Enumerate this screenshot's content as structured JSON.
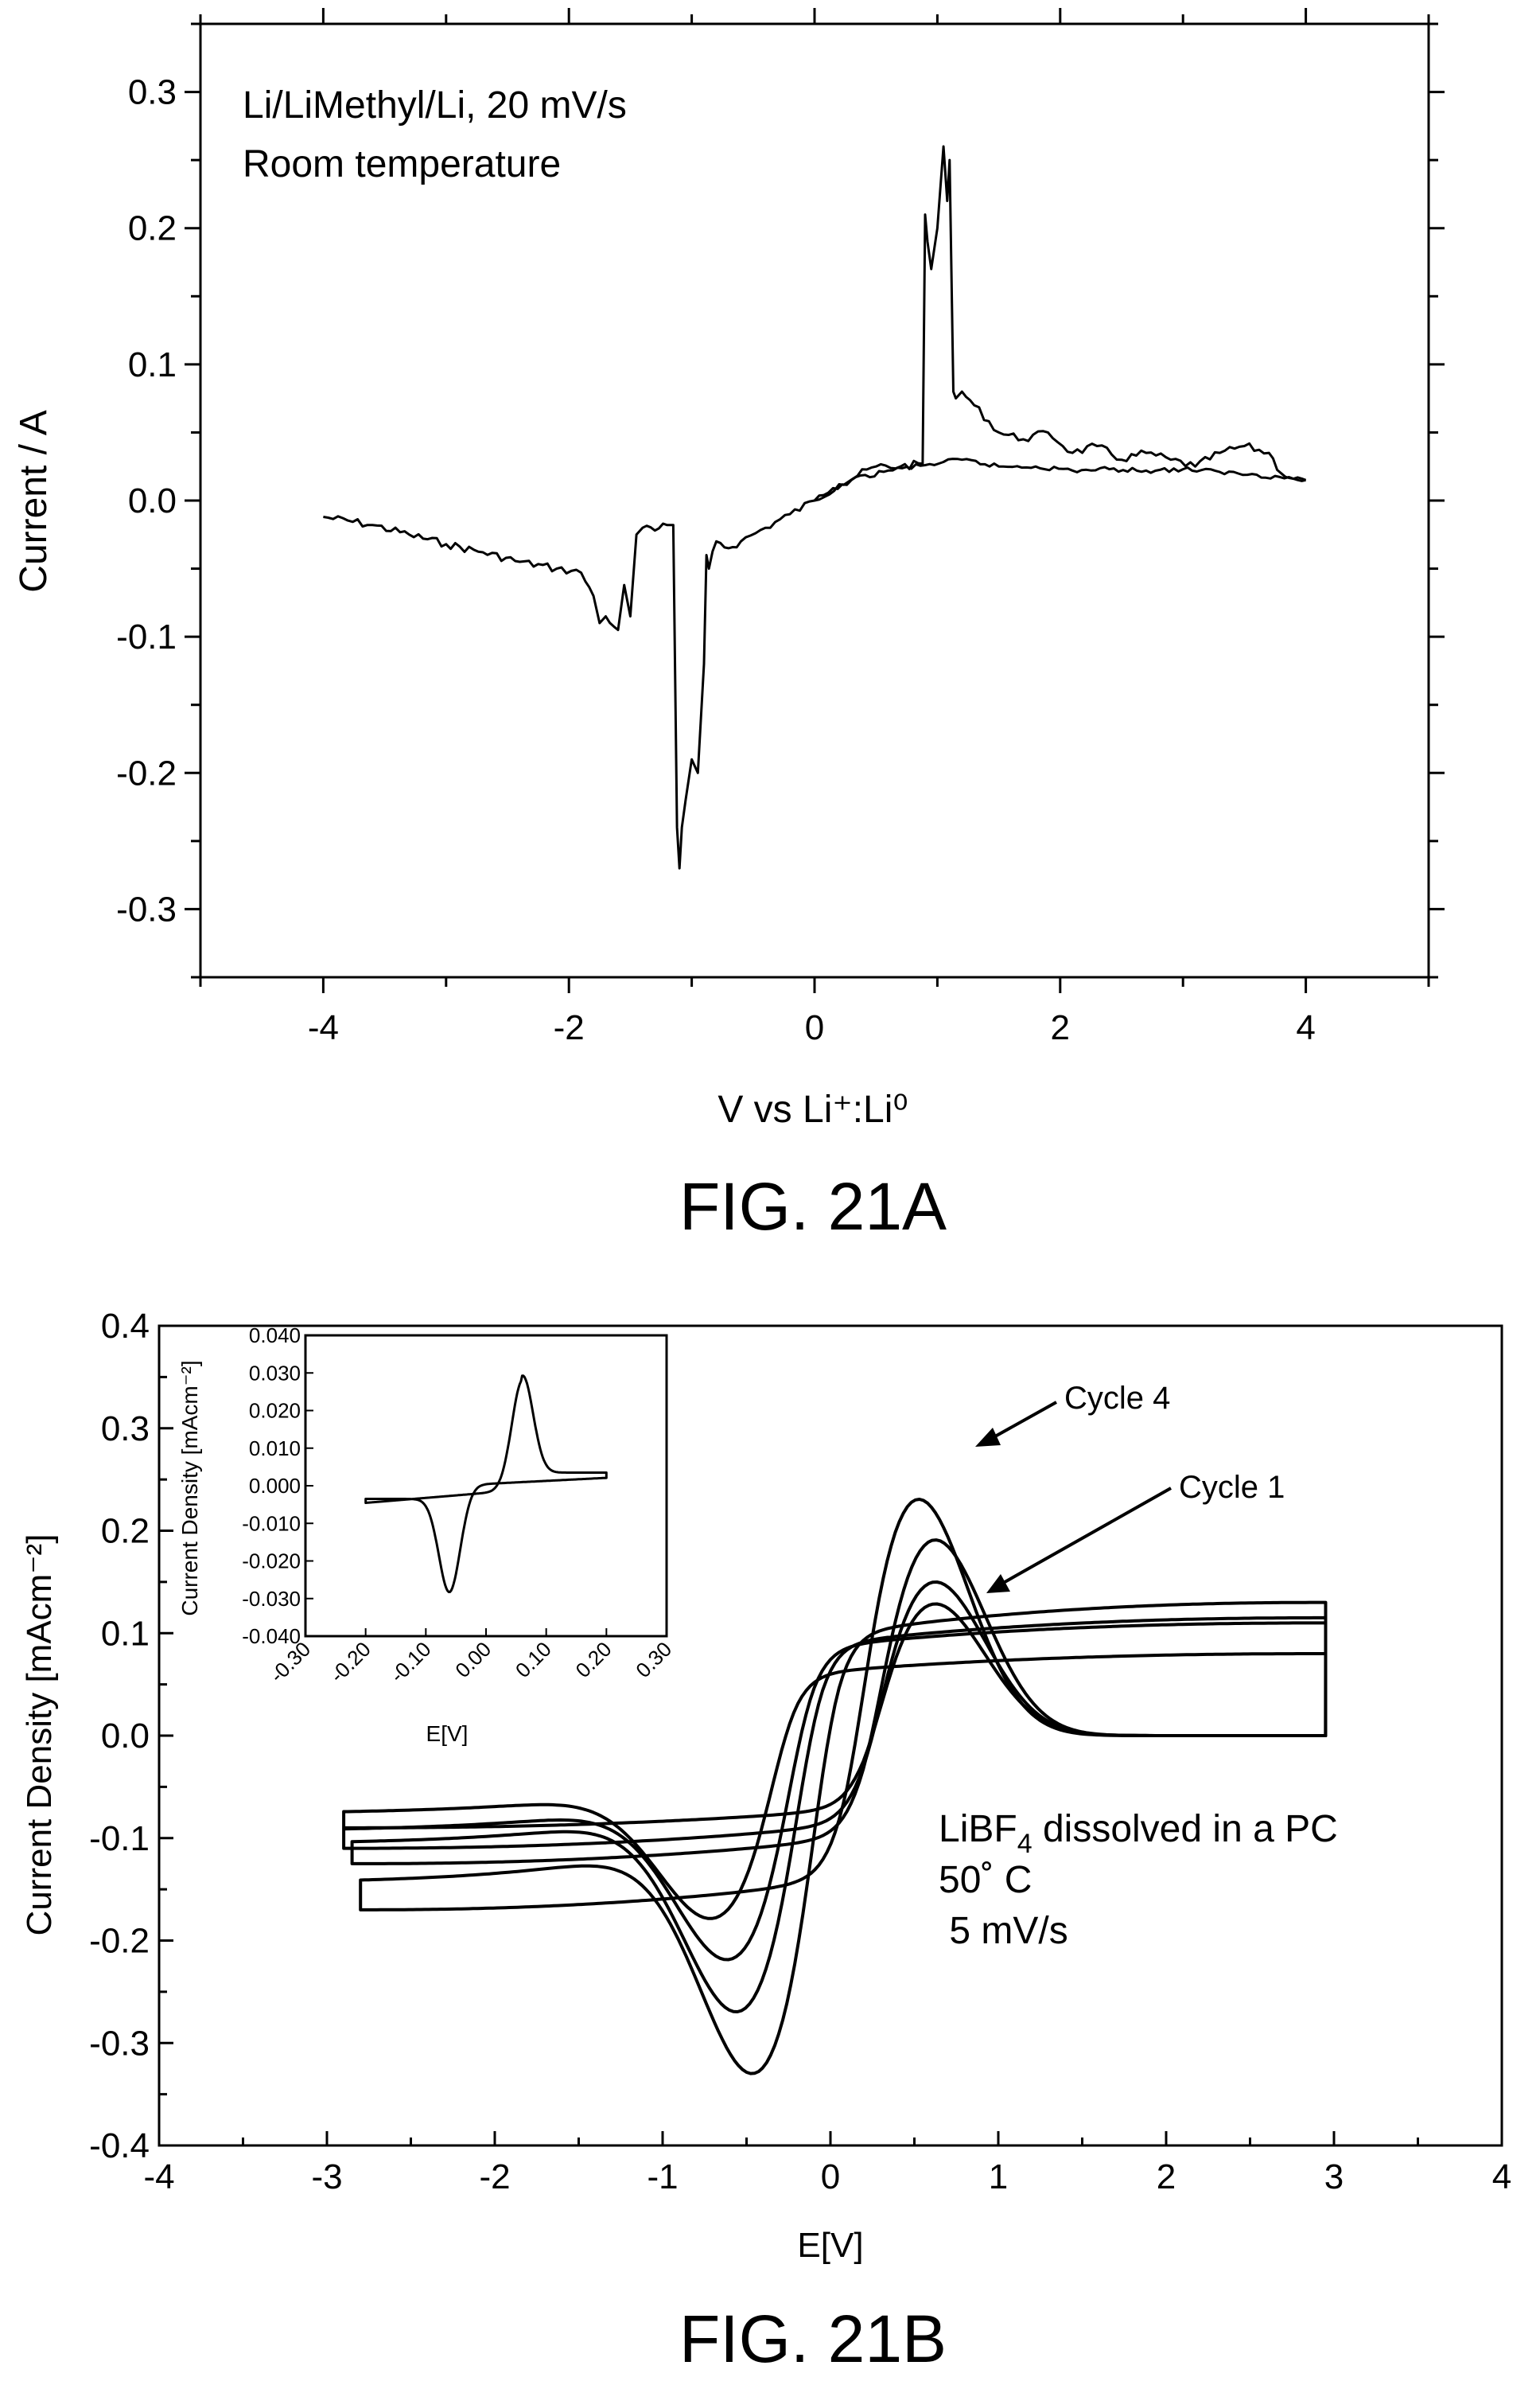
{
  "figures": [
    {
      "caption": "FIG. 21A",
      "annotations": [
        "Li/LiMethyl/Li, 20 mV/s",
        "Room temperature"
      ]
    },
    {
      "caption": "FIG. 21B",
      "annotations": [
        "LiBF",
        "4",
        " dissolved in a PC",
        "50˚ C",
        " 5 mV/s"
      ],
      "cycle_labels": [
        "Cycle 4",
        "Cycle 1"
      ]
    }
  ],
  "chart_data": [
    {
      "type": "line",
      "title": "",
      "xlabel": "V vs Li⁺:Li⁰",
      "ylabel": "Current / A",
      "xlim": [
        -5,
        5
      ],
      "ylim": [
        -0.35,
        0.35
      ],
      "xticks": [
        "-4",
        "-2",
        "0",
        "2",
        "4"
      ],
      "yticks": [
        "0.3",
        "0.2",
        "0.1",
        "0.0",
        "-0.1",
        "-0.2",
        "-0.3"
      ],
      "grid": false,
      "series": [
        {
          "x": [
            -4.0,
            -3.6,
            -3.3,
            -3.0,
            -2.7,
            -2.4,
            -2.1,
            -1.9,
            -1.8,
            -1.75,
            -1.7,
            -1.6,
            -1.55,
            -1.5,
            -1.45,
            -1.4,
            -1.3,
            -1.2,
            -1.15,
            -1.12,
            -1.1,
            -1.08,
            -1.05,
            -1.0,
            -0.95,
            -0.9,
            -0.88,
            -0.86,
            -0.8,
            -0.7,
            -0.6,
            -0.4,
            -0.2,
            0.0,
            0.2,
            0.5,
            0.7,
            0.88,
            0.9,
            0.92,
            0.95,
            1.0,
            1.05,
            1.08,
            1.1,
            1.13,
            1.15,
            1.2,
            1.3,
            1.5,
            1.7,
            1.9,
            2.1,
            2.3,
            2.5,
            2.7,
            2.9,
            3.1,
            3.3,
            3.5,
            3.7,
            3.8,
            3.9,
            4.0
          ],
          "y": [
            -0.012,
            -0.018,
            -0.025,
            -0.032,
            -0.038,
            -0.045,
            -0.05,
            -0.053,
            -0.07,
            -0.09,
            -0.085,
            -0.095,
            -0.062,
            -0.085,
            -0.025,
            -0.02,
            -0.022,
            -0.018,
            -0.018,
            -0.24,
            -0.27,
            -0.24,
            -0.22,
            -0.19,
            -0.2,
            -0.12,
            -0.04,
            -0.05,
            -0.03,
            -0.035,
            -0.03,
            -0.02,
            -0.01,
            0.0,
            0.012,
            0.025,
            0.025,
            0.027,
            0.21,
            0.19,
            0.17,
            0.2,
            0.26,
            0.22,
            0.25,
            0.08,
            0.075,
            0.08,
            0.07,
            0.05,
            0.045,
            0.05,
            0.035,
            0.04,
            0.03,
            0.035,
            0.03,
            0.025,
            0.035,
            0.04,
            0.035,
            0.02,
            0.016,
            0.015
          ]
        },
        {
          "x": [
            0.0,
            0.3,
            0.6,
            0.9,
            1.2,
            1.5,
            1.8,
            2.1,
            2.4,
            2.7,
            3.0,
            3.3,
            3.6,
            3.9,
            4.0
          ],
          "y": [
            0.0,
            0.015,
            0.022,
            0.026,
            0.03,
            0.025,
            0.025,
            0.022,
            0.023,
            0.022,
            0.023,
            0.021,
            0.019,
            0.016,
            0.015
          ]
        }
      ]
    },
    {
      "type": "line",
      "title": "",
      "xlabel": "E[V]",
      "ylabel": "Current Density [mAcm⁻²]",
      "xlim": [
        -4,
        4
      ],
      "ylim": [
        -0.4,
        0.4
      ],
      "xticks": [
        "-4",
        "-3",
        "-2",
        "-1",
        "0",
        "1",
        "2",
        "3",
        "4"
      ],
      "yticks": [
        "0.4",
        "0.3",
        "0.2",
        "0.1",
        "0.0",
        "-0.1",
        "-0.2",
        "-0.3",
        "-0.4"
      ],
      "grid": false,
      "series": [
        {
          "name": "Cycle 1",
          "anodic_peak": [
            0.6,
            0.18
          ],
          "cathodic_peak": [
            -0.65,
            -0.2
          ],
          "x_start": -2.9,
          "x_end": 2.95,
          "ends": [
            -0.09,
            0.08
          ]
        },
        {
          "anodic_peak": [
            0.6,
            0.22
          ],
          "cathodic_peak": [
            -0.55,
            -0.245
          ],
          "x_start": -2.9,
          "x_end": 2.95,
          "ends": [
            -0.11,
            0.11
          ]
        },
        {
          "anodic_peak": [
            0.6,
            0.265
          ],
          "cathodic_peak": [
            -0.5,
            -0.3
          ],
          "x_start": -2.85,
          "x_end": 2.95,
          "ends": [
            -0.125,
            0.115
          ]
        },
        {
          "name": "Cycle 4",
          "anodic_peak": [
            0.5,
            0.315
          ],
          "cathodic_peak": [
            -0.4,
            -0.37
          ],
          "x_start": -2.8,
          "x_end": 2.95,
          "ends": [
            -0.17,
            0.13
          ]
        }
      ],
      "inset": {
        "type": "line",
        "xlabel": "E[V]",
        "ylabel": "Current Density [mAcm⁻²]",
        "xlim": [
          -0.3,
          0.3
        ],
        "ylim": [
          -0.04,
          0.04
        ],
        "xticks": [
          "-0.30",
          "-0.20",
          "-0.10",
          "0.00",
          "0.10",
          "0.20",
          "0.30"
        ],
        "yticks": [
          "0.040",
          "0.030",
          "0.020",
          "0.010",
          "0.000",
          "-0.010",
          "-0.020",
          "-0.030",
          "-0.040"
        ],
        "series": [
          {
            "anodic_peak": [
              0.06,
              0.031
            ],
            "cathodic_peak": [
              -0.06,
              -0.03
            ],
            "x_start": -0.2,
            "x_end": 0.2,
            "ends": [
              -0.0035,
              0.0035
            ]
          }
        ]
      }
    }
  ]
}
